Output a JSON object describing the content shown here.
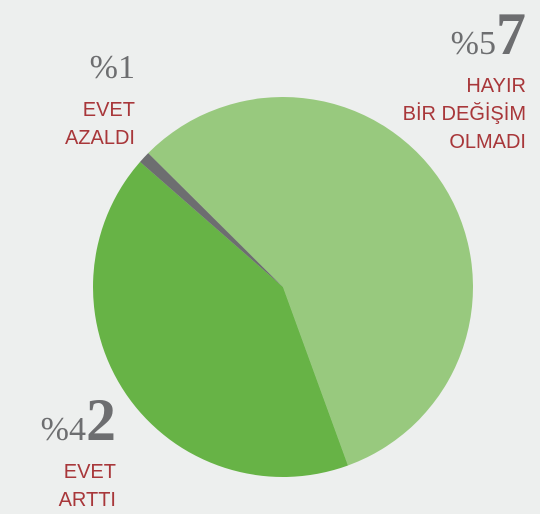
{
  "chart_data": {
    "type": "pie",
    "categories": [
      "HAYIR\nBİR DEĞİŞİM\nOLMADI",
      "EVET\nARTTI",
      "EVET\nAZALDI"
    ],
    "values": [
      57,
      42,
      1
    ],
    "value_labels": [
      "%57",
      "%42",
      "%1"
    ],
    "colors": [
      "#98c97e",
      "#67b346",
      "#6d6e70"
    ]
  }
}
